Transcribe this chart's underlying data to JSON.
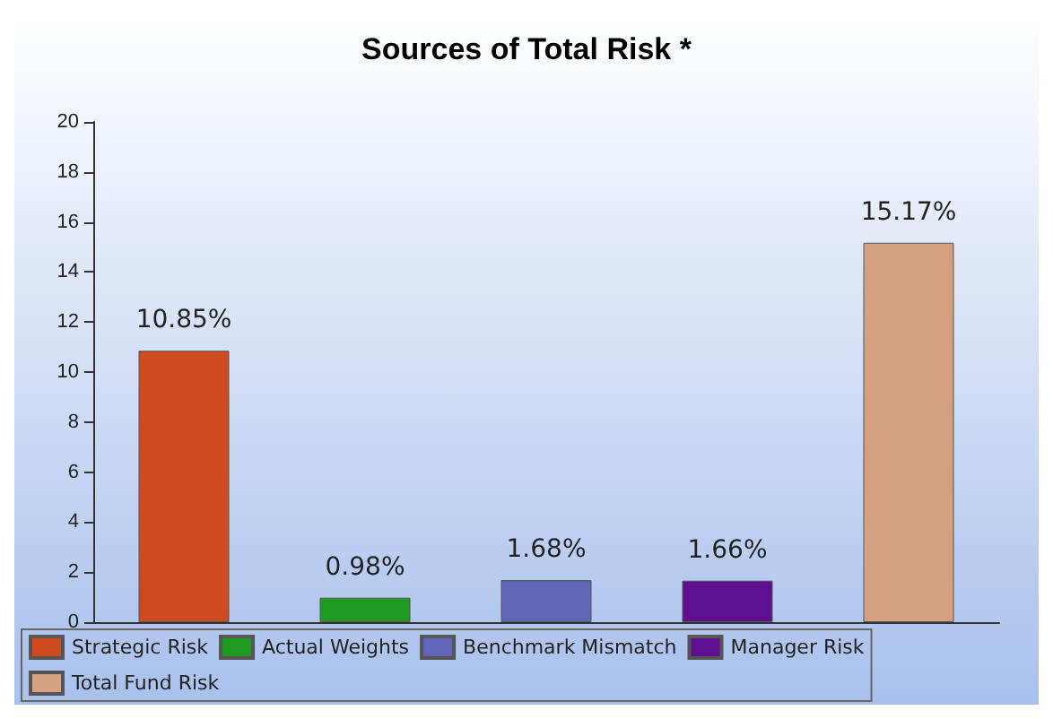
{
  "chart_data": {
    "type": "bar",
    "title": "Sources of Total Risk *",
    "categories": [
      null,
      null,
      null,
      null,
      null
    ],
    "series": [
      {
        "name": "Strategic Risk",
        "color": "#d04a20",
        "values": [
          10.85,
          null,
          null,
          null,
          null
        ],
        "value_labels": [
          "10.85%",
          null,
          null,
          null,
          null
        ]
      },
      {
        "name": "Actual Weights",
        "color": "#1e9a1e",
        "values": [
          null,
          0.98,
          null,
          null,
          null
        ],
        "value_labels": [
          null,
          "0.98%",
          null,
          null,
          null
        ]
      },
      {
        "name": "Benchmark Mismatch",
        "color": "#6066b8",
        "values": [
          null,
          null,
          1.68,
          null,
          null
        ],
        "value_labels": [
          null,
          null,
          "1.68%",
          null,
          null
        ]
      },
      {
        "name": "Manager Risk",
        "color": "#5e1090",
        "values": [
          null,
          null,
          null,
          1.66,
          null
        ],
        "value_labels": [
          null,
          null,
          null,
          "1.66%",
          null
        ]
      },
      {
        "name": "Total Fund Risk",
        "color": "#d4a080",
        "values": [
          null,
          null,
          null,
          null,
          15.17
        ],
        "value_labels": [
          null,
          null,
          null,
          null,
          "15.17%"
        ]
      }
    ],
    "ylim": [
      0,
      20
    ],
    "yticks": [
      0,
      2,
      4,
      6,
      8,
      10,
      12,
      14,
      16,
      18,
      20
    ],
    "grid": false,
    "legend": "bottom"
  }
}
